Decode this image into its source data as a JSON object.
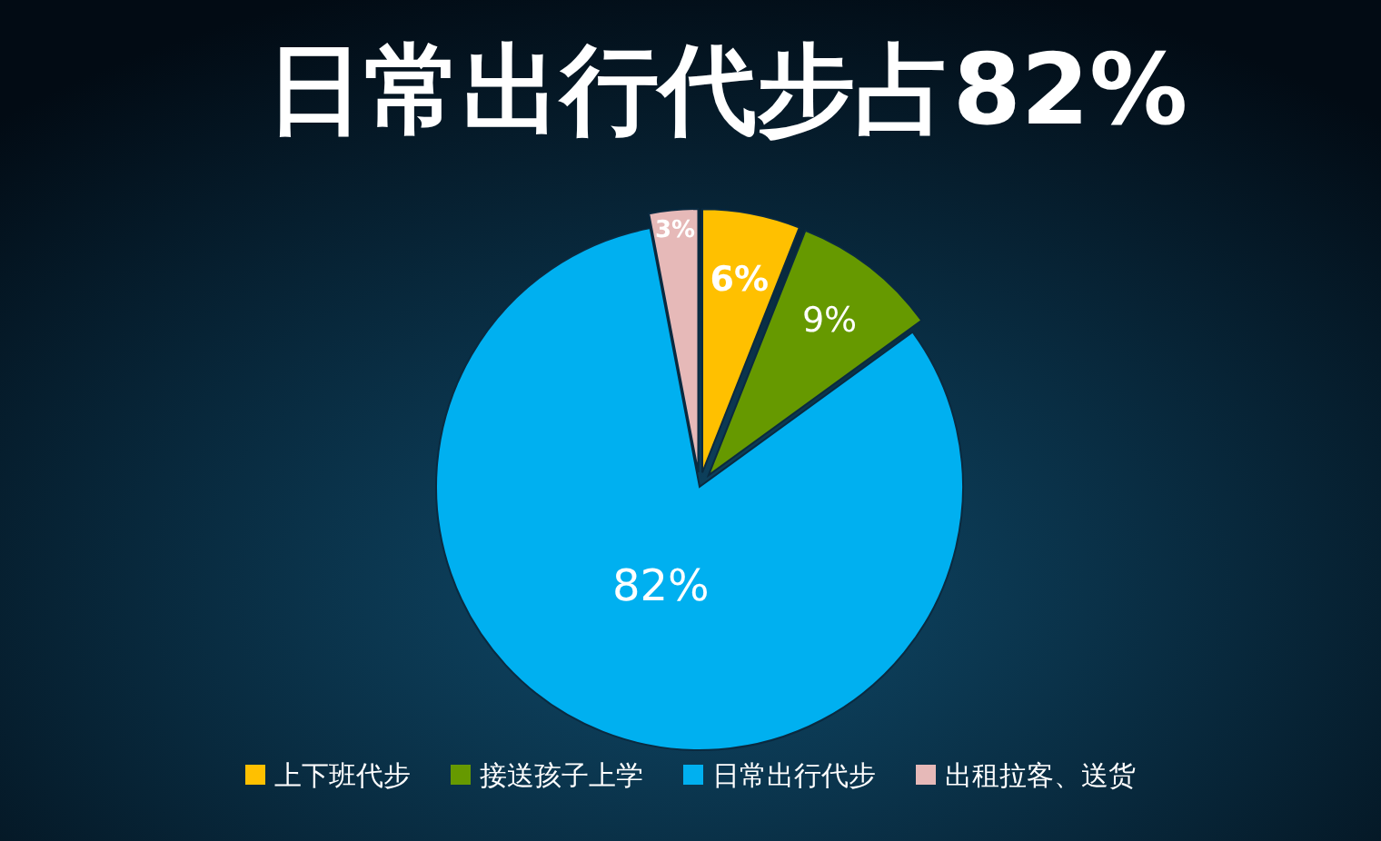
{
  "chart_data": {
    "type": "pie",
    "title": "日常出行代步占82%",
    "categories": [
      "上下班代步",
      "接送孩子上学",
      "日常出行代步",
      "出租拉客、送货"
    ],
    "values": [
      6,
      9,
      82,
      3
    ],
    "colors": [
      "#ffc000",
      "#669900",
      "#00b0f0",
      "#e6b9b8"
    ],
    "value_labels": [
      "6%",
      "9%",
      "82%",
      "3%"
    ],
    "legend": "bottom"
  }
}
